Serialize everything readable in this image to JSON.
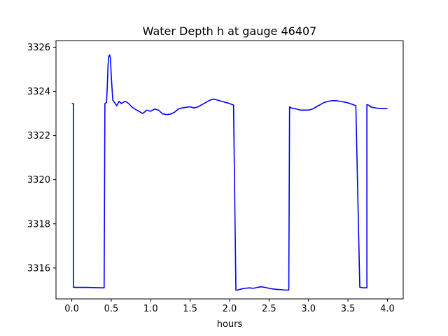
{
  "chart_data": {
    "type": "line",
    "title": "Water Depth h at gauge 46407",
    "xlabel": "hours",
    "ylabel": "",
    "xlim": [
      -0.2,
      4.2
    ],
    "ylim": [
      3314.6,
      3326.3
    ],
    "xticks": [
      0.0,
      0.5,
      1.0,
      1.5,
      2.0,
      2.5,
      3.0,
      3.5,
      4.0
    ],
    "xtick_labels": [
      "0.0",
      "0.5",
      "1.0",
      "1.5",
      "2.0",
      "2.5",
      "3.0",
      "3.5",
      "4.0"
    ],
    "yticks": [
      3316,
      3318,
      3320,
      3322,
      3324,
      3326
    ],
    "ytick_labels": [
      "3316",
      "3318",
      "3320",
      "3322",
      "3324",
      "3326"
    ],
    "grid": false,
    "series": [
      {
        "color": "#0000ff",
        "x": [
          0.0,
          0.02,
          0.02,
          0.05,
          0.1,
          0.2,
          0.3,
          0.4,
          0.41,
          0.42,
          0.44,
          0.45,
          0.46,
          0.47,
          0.48,
          0.49,
          0.5,
          0.52,
          0.54,
          0.57,
          0.6,
          0.63,
          0.65,
          0.68,
          0.72,
          0.76,
          0.8,
          0.85,
          0.9,
          0.95,
          1.0,
          1.05,
          1.1,
          1.15,
          1.2,
          1.25,
          1.3,
          1.35,
          1.4,
          1.45,
          1.5,
          1.55,
          1.6,
          1.65,
          1.7,
          1.75,
          1.8,
          1.85,
          1.9,
          1.95,
          2.0,
          2.05,
          2.08,
          2.09,
          2.1,
          2.15,
          2.2,
          2.25,
          2.3,
          2.35,
          2.4,
          2.45,
          2.5,
          2.55,
          2.6,
          2.65,
          2.7,
          2.75,
          2.76,
          2.78,
          2.85,
          2.9,
          2.95,
          3.0,
          3.05,
          3.1,
          3.15,
          3.2,
          3.25,
          3.3,
          3.35,
          3.4,
          3.45,
          3.5,
          3.55,
          3.6,
          3.65,
          3.7,
          3.74,
          3.74,
          3.78,
          3.78,
          3.85,
          3.9,
          4.0
        ],
        "y": [
          3323.45,
          3323.45,
          3315.13,
          3315.12,
          3315.12,
          3315.12,
          3315.11,
          3315.1,
          3315.1,
          3323.45,
          3323.5,
          3324.2,
          3325.2,
          3325.6,
          3325.65,
          3325.5,
          3324.7,
          3323.6,
          3323.5,
          3323.35,
          3323.55,
          3323.45,
          3323.5,
          3323.55,
          3323.45,
          3323.3,
          3323.2,
          3323.1,
          3323.0,
          3323.15,
          3323.1,
          3323.2,
          3323.15,
          3322.98,
          3322.95,
          3322.97,
          3323.05,
          3323.2,
          3323.25,
          3323.28,
          3323.3,
          3323.25,
          3323.3,
          3323.4,
          3323.5,
          3323.6,
          3323.65,
          3323.6,
          3323.55,
          3323.5,
          3323.45,
          3323.38,
          3315.0,
          3315.0,
          3315.0,
          3315.05,
          3315.08,
          3315.1,
          3315.08,
          3315.12,
          3315.15,
          3315.12,
          3315.08,
          3315.05,
          3315.03,
          3315.02,
          3315.0,
          3315.0,
          3323.3,
          3323.25,
          3323.2,
          3323.15,
          3323.15,
          3323.15,
          3323.2,
          3323.3,
          3323.4,
          3323.5,
          3323.55,
          3323.58,
          3323.58,
          3323.55,
          3323.52,
          3323.48,
          3323.42,
          3323.35,
          3315.13,
          3315.1,
          3315.1,
          3323.4,
          3323.35,
          3323.3,
          3323.25,
          3323.22,
          3323.22
        ]
      }
    ]
  }
}
